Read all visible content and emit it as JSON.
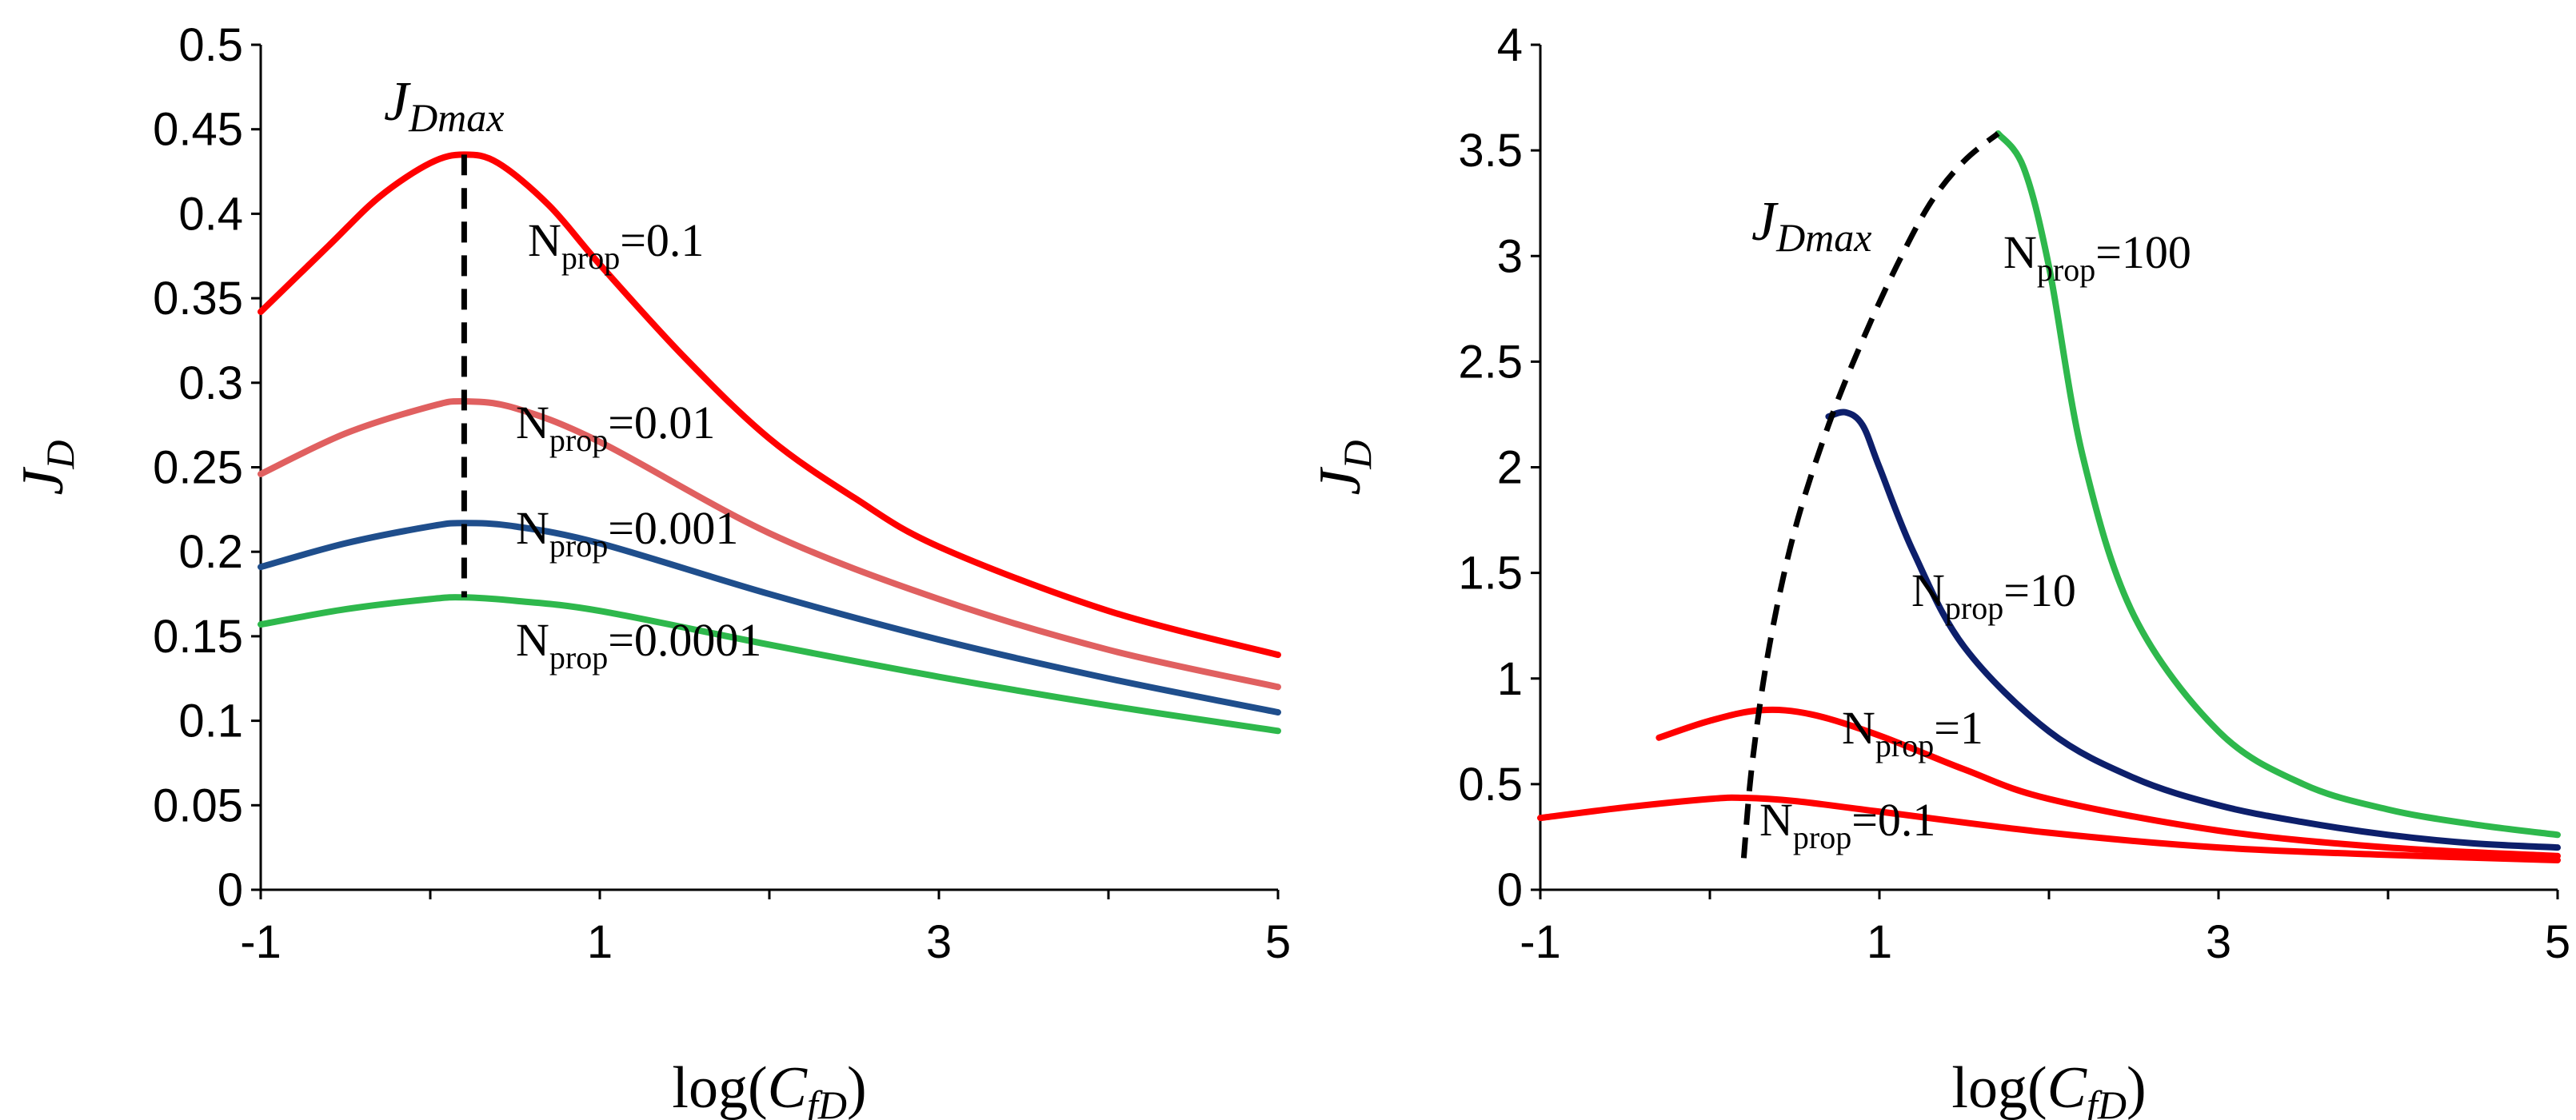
{
  "chart_data": [
    {
      "type": "line",
      "xlabel": "log(",
      "xlabel_var": "C",
      "xlabel_sub": "fD",
      "xlabel_close": ")",
      "ylabel": "J",
      "ylabel_sub": "D",
      "xlim": [
        -1,
        5
      ],
      "ylim": [
        0,
        0.5
      ],
      "x_ticks": [
        "-1",
        "1",
        "3",
        "5"
      ],
      "y_ticks": [
        "0",
        "0.05",
        "0.1",
        "0.15",
        "0.2",
        "0.25",
        "0.3",
        "0.35",
        "0.4",
        "0.45",
        "0.5"
      ],
      "series": [
        {
          "name": "Nprop=0.1",
          "label_main": "N",
          "label_sub": "prop",
          "label_val": "=0.1",
          "color": "#ff0000",
          "x": [
            -1,
            -0.6,
            -0.3,
            0,
            0.2,
            0.4,
            0.7,
            1,
            1.5,
            2,
            2.5,
            3,
            4,
            5
          ],
          "y": [
            0.342,
            0.381,
            0.41,
            0.43,
            0.435,
            0.43,
            0.405,
            0.37,
            0.315,
            0.267,
            0.232,
            0.203,
            0.165,
            0.139
          ]
        },
        {
          "name": "Nprop=0.01",
          "label_main": "N",
          "label_sub": "prop",
          "label_val": "=0.01",
          "color": "#e06060",
          "x": [
            -1,
            -0.5,
            0,
            0.2,
            0.5,
            1,
            2,
            3,
            4,
            5
          ],
          "y": [
            0.246,
            0.27,
            0.286,
            0.289,
            0.285,
            0.265,
            0.211,
            0.172,
            0.142,
            0.12
          ]
        },
        {
          "name": "Nprop=0.001",
          "label_main": "N",
          "label_sub": "prop",
          "label_val": "=0.001",
          "color": "#1f4e8c",
          "x": [
            -1,
            -0.5,
            0,
            0.2,
            0.5,
            1,
            2,
            3,
            4,
            5
          ],
          "y": [
            0.191,
            0.205,
            0.215,
            0.217,
            0.215,
            0.205,
            0.175,
            0.148,
            0.125,
            0.105
          ]
        },
        {
          "name": "Nprop=0.0001",
          "label_main": "N",
          "label_sub": "prop",
          "label_val": "=0.0001",
          "color": "#2eb84c",
          "x": [
            -1,
            -0.5,
            0,
            0.2,
            0.5,
            1,
            2,
            3,
            4,
            5
          ],
          "y": [
            0.157,
            0.166,
            0.172,
            0.173,
            0.171,
            0.165,
            0.145,
            0.126,
            0.109,
            0.094
          ]
        }
      ],
      "annotations": [
        {
          "type": "dashed-line",
          "x": [
            0.2,
            0.2
          ],
          "y": [
            0.435,
            0.173
          ]
        },
        {
          "text": "J",
          "sub": "Dmax",
          "x": -0.25,
          "y": 0.455
        }
      ]
    },
    {
      "type": "line",
      "xlabel": "log(",
      "xlabel_var": "C",
      "xlabel_sub": "fD",
      "xlabel_close": ")",
      "ylabel": "J",
      "ylabel_sub": "D",
      "xlim": [
        -1,
        5
      ],
      "ylim": [
        0,
        4
      ],
      "x_ticks": [
        "-1",
        "1",
        "3",
        "5"
      ],
      "y_ticks": [
        "0",
        "0.5",
        "1",
        "1.5",
        "2",
        "2.5",
        "3",
        "3.5",
        "4"
      ],
      "series": [
        {
          "name": "Nprop=100",
          "label_main": "N",
          "label_sub": "prop",
          "label_val": "=100",
          "color": "#2eb84c",
          "x": [
            1.7,
            1.85,
            2,
            2.2,
            2.5,
            3,
            3.5,
            4,
            4.5,
            5
          ],
          "y": [
            3.58,
            3.42,
            2.95,
            2.05,
            1.3,
            0.75,
            0.5,
            0.38,
            0.31,
            0.26
          ]
        },
        {
          "name": "Nprop=10",
          "label_main": "N",
          "label_sub": "prop",
          "label_val": "=10",
          "color": "#0d1f6b",
          "x": [
            0.7,
            0.8,
            0.9,
            1,
            1.2,
            1.5,
            2,
            2.5,
            3,
            3.5,
            4,
            4.5,
            5
          ],
          "y": [
            2.24,
            2.26,
            2.2,
            2.0,
            1.6,
            1.15,
            0.75,
            0.53,
            0.4,
            0.32,
            0.26,
            0.22,
            0.2
          ]
        },
        {
          "name": "Nprop=1",
          "label_main": "N",
          "label_sub": "prop",
          "label_val": "=1",
          "color": "#ff0000",
          "x": [
            -0.3,
            0,
            0.3,
            0.6,
            1,
            1.5,
            2,
            3,
            4,
            5
          ],
          "y": [
            0.72,
            0.8,
            0.85,
            0.83,
            0.73,
            0.57,
            0.43,
            0.28,
            0.2,
            0.16
          ]
        },
        {
          "name": "Nprop=0.1",
          "label_main": "N",
          "label_sub": "prop",
          "label_val": "=0.1",
          "color": "#ff0000",
          "x": [
            -1,
            -0.5,
            0,
            0.2,
            0.5,
            1,
            2,
            3,
            4,
            5
          ],
          "y": [
            0.34,
            0.39,
            0.43,
            0.435,
            0.42,
            0.37,
            0.27,
            0.2,
            0.165,
            0.14
          ]
        }
      ],
      "annotations": [
        {
          "type": "dashed-line",
          "x": [
            0.2,
            0.25,
            0.35,
            0.5,
            0.7,
            0.9,
            1.1,
            1.3,
            1.5,
            1.7
          ],
          "y": [
            0.15,
            0.6,
            1.15,
            1.7,
            2.2,
            2.6,
            2.95,
            3.25,
            3.45,
            3.58
          ]
        },
        {
          "text": "J",
          "sub": "Dmax",
          "x": 0.25,
          "y": 2.95
        }
      ]
    }
  ]
}
